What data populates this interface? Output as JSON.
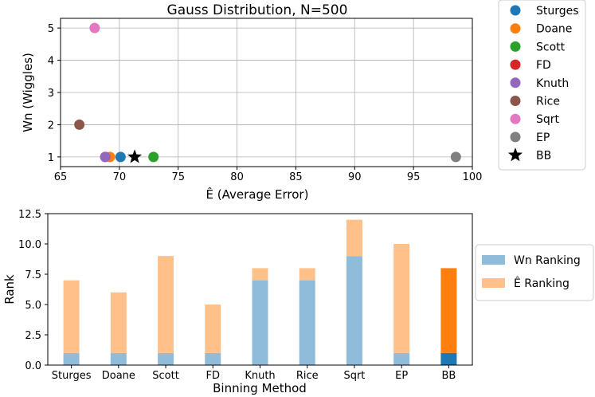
{
  "chart_data": [
    {
      "type": "scatter",
      "title": "Gauss Distribution, N=500",
      "xlabel": "Ê (Average Error)",
      "ylabel": "Wn (Wiggles)",
      "xlim": [
        65,
        100
      ],
      "ylim": [
        0.7,
        5.3
      ],
      "xticks": [
        65,
        70,
        75,
        80,
        85,
        90,
        95,
        100
      ],
      "yticks": [
        1,
        2,
        3,
        4,
        5
      ],
      "grid": true,
      "legend_position": "outside-right",
      "points": [
        {
          "name": "Sturges",
          "x": 70.1,
          "y": 1,
          "color": "#1f77b4",
          "marker": "circle"
        },
        {
          "name": "Doane",
          "x": 69.2,
          "y": 1,
          "color": "#ff7f0e",
          "marker": "circle"
        },
        {
          "name": "Scott",
          "x": 72.9,
          "y": 1,
          "color": "#2ca02c",
          "marker": "circle"
        },
        {
          "name": "FD",
          "x": 68.8,
          "y": 1,
          "color": "#d62728",
          "marker": "circle"
        },
        {
          "name": "Knuth",
          "x": 68.8,
          "y": 1,
          "color": "#9467bd",
          "marker": "circle"
        },
        {
          "name": "Rice",
          "x": 66.6,
          "y": 2,
          "color": "#8c564b",
          "marker": "circle"
        },
        {
          "name": "Sqrt",
          "x": 67.9,
          "y": 5,
          "color": "#e377c2",
          "marker": "circle"
        },
        {
          "name": "EP",
          "x": 98.6,
          "y": 1,
          "color": "#7f7f7f",
          "marker": "circle"
        },
        {
          "name": "BB",
          "x": 71.3,
          "y": 1,
          "color": "#000000",
          "marker": "star"
        }
      ]
    },
    {
      "type": "bar",
      "stacked": true,
      "xlabel": "Binning Method",
      "ylabel": "Rank",
      "ylim": [
        0,
        12.5
      ],
      "yticks": [
        "0.0",
        "2.5",
        "5.0",
        "7.5",
        "10.0",
        "12.5"
      ],
      "categories": [
        "Sturges",
        "Doane",
        "Scott",
        "FD",
        "Knuth",
        "Rice",
        "Sqrt",
        "EP",
        "BB"
      ],
      "series": [
        {
          "name": "Wn Ranking",
          "values": [
            1,
            1,
            1,
            1,
            7,
            7,
            9,
            1,
            1
          ],
          "color": "#8fbcdb",
          "highlight_color": "#1f77b4"
        },
        {
          "name": "Ê Ranking",
          "values": [
            6,
            5,
            8,
            4,
            1,
            1,
            3,
            9,
            7
          ],
          "color": "#ffc08a",
          "highlight_color": "#ff7f0e"
        }
      ],
      "highlight_category": "BB",
      "legend_position": "outside-right"
    }
  ]
}
